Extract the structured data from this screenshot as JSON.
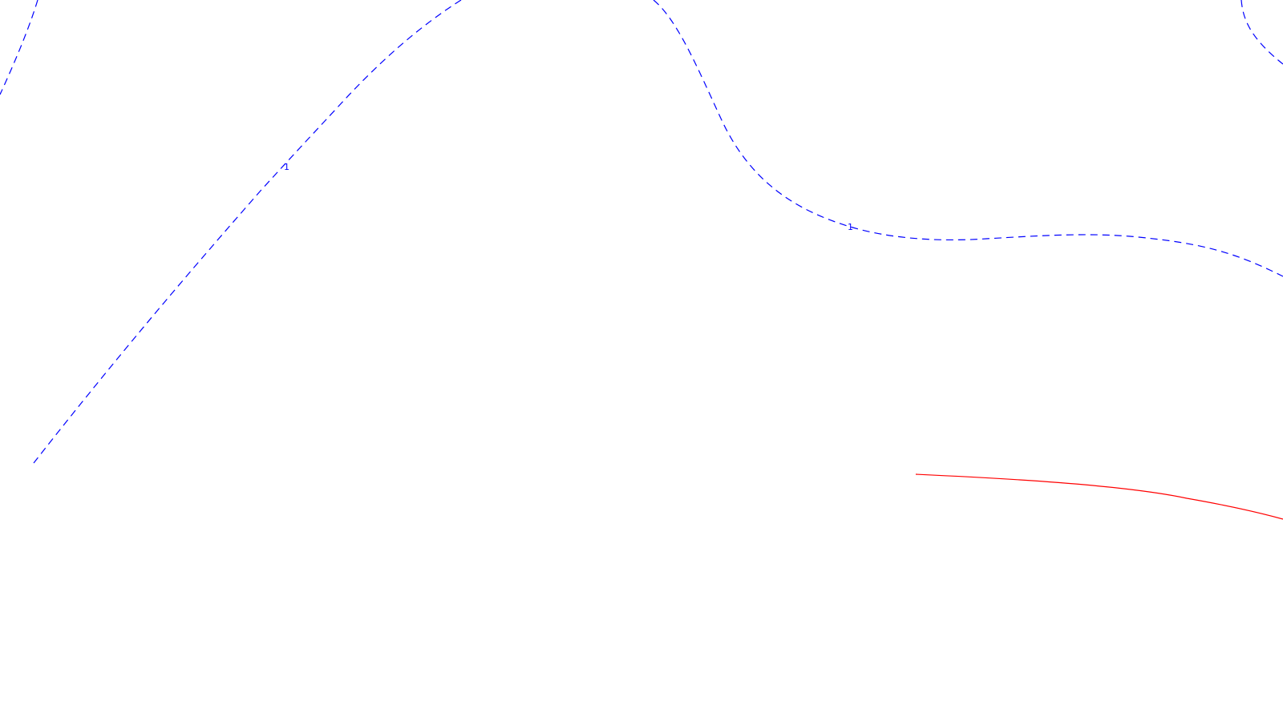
{
  "map": {
    "background_color": "#ffffff",
    "contour_color": "#0000ff",
    "boundary_color": "#ff0000",
    "contour_labels": [
      "1",
      "1"
    ]
  }
}
